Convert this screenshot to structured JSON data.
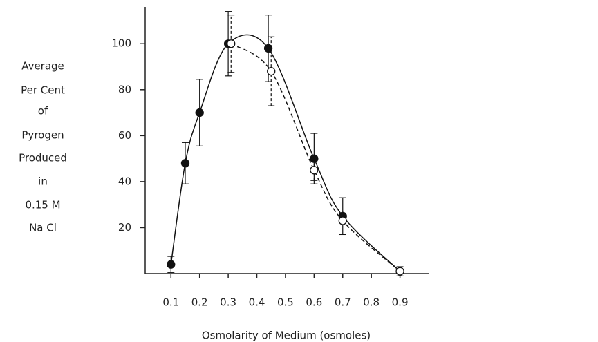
{
  "chart_data": {
    "type": "line",
    "ylabel": [
      "Average",
      "Per Cent",
      "of",
      "Pyrogen",
      "Produced",
      "in",
      "0.15 M",
      "Na Cl"
    ],
    "xlabel": "Osmolarity of Medium (osmoles)",
    "xlim": [
      0.01,
      1.0
    ],
    "ylim": [
      0,
      116
    ],
    "xticks": [
      0.1,
      0.2,
      0.3,
      0.4,
      0.5,
      0.6,
      0.7,
      0.8,
      0.9
    ],
    "yticks": [
      20,
      40,
      60,
      80,
      100
    ],
    "series": [
      {
        "color": "#111111",
        "dash": false,
        "marker": "filled",
        "x": [
          0.1,
          0.15,
          0.2,
          0.3,
          0.44,
          0.6,
          0.7,
          0.9
        ],
        "values": [
          4,
          48,
          70,
          100,
          98,
          50,
          25,
          1
        ],
        "errors": [
          3.5,
          9,
          14.5,
          14,
          14.5,
          11,
          8,
          2
        ]
      },
      {
        "color": "#111111",
        "dash": true,
        "marker": "open",
        "x": [
          0.31,
          0.45,
          0.6,
          0.7,
          0.9
        ],
        "values": [
          100,
          88,
          45,
          23,
          1
        ],
        "errors": [
          12.5,
          15,
          4.5,
          0,
          0
        ]
      }
    ]
  }
}
